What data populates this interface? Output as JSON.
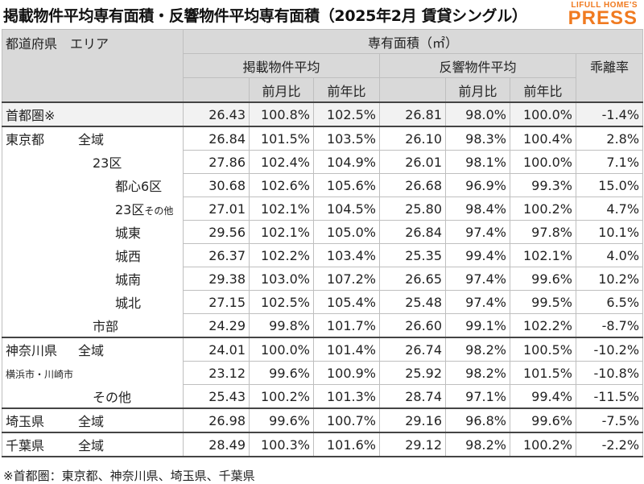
{
  "title": "掲載物件平均専有面積・反響物件平均専有面積（2025年2月 賃貸シングル）",
  "logo": {
    "top": "LIFULL HOME'S",
    "main": "PRESS"
  },
  "headers": {
    "region": "都道府県　エリア",
    "area_unit": "専有面積（㎡）",
    "listed": "掲載物件平均",
    "inquiry": "反響物件平均",
    "divergence": "乖離率",
    "mom": "前月比",
    "yoy": "前年比"
  },
  "rows": [
    {
      "pref": "首都圏※",
      "area": "",
      "listed": "26.43",
      "listed_mom": "100.8%",
      "listed_yoy": "102.5%",
      "inquiry": "26.81",
      "inquiry_mom": "98.0%",
      "inquiry_yoy": "100.0%",
      "divergence": "-1.4%"
    },
    {
      "pref": "東京都",
      "area": "全域",
      "listed": "26.84",
      "listed_mom": "101.5%",
      "listed_yoy": "103.5%",
      "inquiry": "26.10",
      "inquiry_mom": "98.3%",
      "inquiry_yoy": "100.4%",
      "divergence": "2.8%"
    },
    {
      "pref": "",
      "area": "23区",
      "listed": "27.86",
      "listed_mom": "102.4%",
      "listed_yoy": "104.9%",
      "inquiry": "26.01",
      "inquiry_mom": "98.1%",
      "inquiry_yoy": "100.0%",
      "divergence": "7.1%"
    },
    {
      "pref": "",
      "area": "都心6区",
      "listed": "30.68",
      "listed_mom": "102.6%",
      "listed_yoy": "105.6%",
      "inquiry": "26.68",
      "inquiry_mom": "96.9%",
      "inquiry_yoy": "99.3%",
      "divergence": "15.0%"
    },
    {
      "pref": "",
      "area": "23区",
      "area_small": "その他",
      "listed": "27.01",
      "listed_mom": "102.1%",
      "listed_yoy": "104.5%",
      "inquiry": "25.80",
      "inquiry_mom": "98.4%",
      "inquiry_yoy": "100.2%",
      "divergence": "4.7%"
    },
    {
      "pref": "",
      "area": "城東",
      "listed": "29.56",
      "listed_mom": "102.1%",
      "listed_yoy": "105.0%",
      "inquiry": "26.84",
      "inquiry_mom": "97.4%",
      "inquiry_yoy": "97.8%",
      "divergence": "10.1%"
    },
    {
      "pref": "",
      "area": "城西",
      "listed": "26.37",
      "listed_mom": "102.2%",
      "listed_yoy": "103.4%",
      "inquiry": "25.35",
      "inquiry_mom": "99.4%",
      "inquiry_yoy": "102.1%",
      "divergence": "4.0%"
    },
    {
      "pref": "",
      "area": "城南",
      "listed": "29.38",
      "listed_mom": "103.0%",
      "listed_yoy": "107.2%",
      "inquiry": "26.65",
      "inquiry_mom": "97.4%",
      "inquiry_yoy": "99.6%",
      "divergence": "10.2%"
    },
    {
      "pref": "",
      "area": "城北",
      "listed": "27.15",
      "listed_mom": "102.5%",
      "listed_yoy": "105.4%",
      "inquiry": "25.48",
      "inquiry_mom": "97.4%",
      "inquiry_yoy": "99.5%",
      "divergence": "6.5%"
    },
    {
      "pref": "",
      "area": "市部",
      "listed": "24.29",
      "listed_mom": "99.8%",
      "listed_yoy": "101.7%",
      "inquiry": "26.60",
      "inquiry_mom": "99.1%",
      "inquiry_yoy": "102.2%",
      "divergence": "-8.7%"
    },
    {
      "pref": "神奈川県",
      "area": "全域",
      "listed": "24.01",
      "listed_mom": "100.0%",
      "listed_yoy": "101.4%",
      "inquiry": "26.74",
      "inquiry_mom": "98.2%",
      "inquiry_yoy": "100.5%",
      "divergence": "-10.2%"
    },
    {
      "pref": "",
      "area": "横浜市・川崎市",
      "listed": "23.12",
      "listed_mom": "99.6%",
      "listed_yoy": "100.9%",
      "inquiry": "25.92",
      "inquiry_mom": "98.2%",
      "inquiry_yoy": "101.5%",
      "divergence": "-10.8%"
    },
    {
      "pref": "",
      "area": "その他",
      "listed": "25.43",
      "listed_mom": "100.2%",
      "listed_yoy": "101.3%",
      "inquiry": "28.74",
      "inquiry_mom": "97.1%",
      "inquiry_yoy": "99.4%",
      "divergence": "-11.5%"
    },
    {
      "pref": "埼玉県",
      "area": "全域",
      "listed": "26.98",
      "listed_mom": "99.6%",
      "listed_yoy": "100.7%",
      "inquiry": "29.16",
      "inquiry_mom": "96.8%",
      "inquiry_yoy": "99.6%",
      "divergence": "-7.5%"
    },
    {
      "pref": "千葉県",
      "area": "全域",
      "listed": "28.49",
      "listed_mom": "100.3%",
      "listed_yoy": "101.6%",
      "inquiry": "29.12",
      "inquiry_mom": "98.2%",
      "inquiry_yoy": "100.2%",
      "divergence": "-2.2%"
    }
  ],
  "footnote": "※首都圏：東京都、神奈川県、埼玉県、千葉県"
}
